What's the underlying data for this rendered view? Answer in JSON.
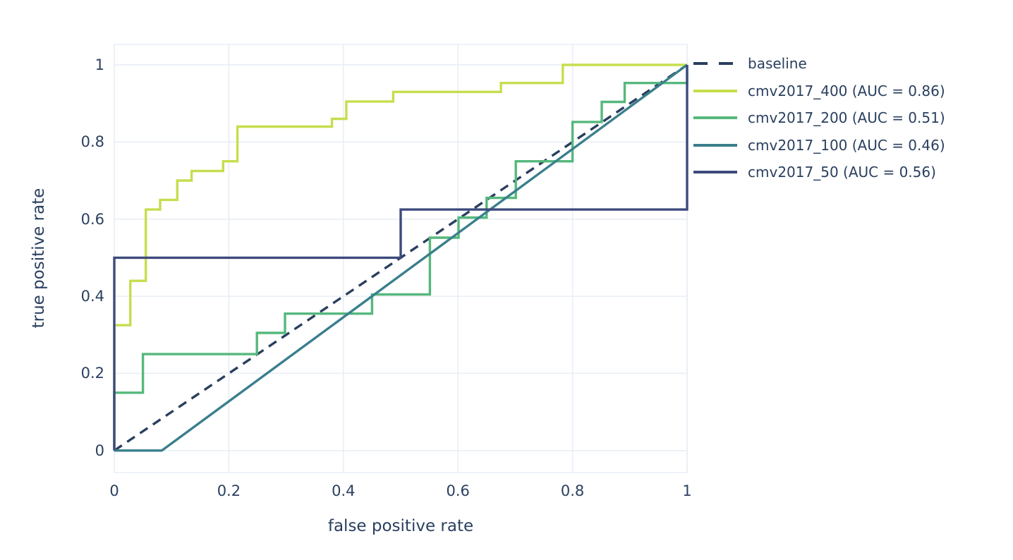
{
  "colors": {
    "text": "#2a3f5f",
    "grid": "#e9eef6",
    "background": "#ffffff"
  },
  "chart_data": {
    "type": "line",
    "subtype": "roc-curves",
    "title": "",
    "xlabel": "false positive rate",
    "ylabel": "true positive rate",
    "xlim": [
      0,
      1
    ],
    "ylim": [
      -0.057,
      1.053
    ],
    "grid": true,
    "legend_position": "right",
    "x_ticks": [
      0,
      0.2,
      0.4,
      0.6,
      0.8,
      1
    ],
    "x_tick_labels": [
      "0",
      "0.2",
      "0.4",
      "0.6",
      "0.8",
      "1"
    ],
    "y_ticks": [
      0,
      0.2,
      0.4,
      0.6,
      0.8,
      1
    ],
    "y_tick_labels": [
      "0",
      "0.2",
      "0.4",
      "0.6",
      "0.8",
      "1"
    ],
    "series": [
      {
        "name": "baseline",
        "color": "#2a3f5f",
        "dash": "13 9",
        "legend_dash": "20 16",
        "width": 3.4,
        "points": [
          [
            0,
            0
          ],
          [
            1,
            1
          ]
        ]
      },
      {
        "name": "cmv2017_400 (AUC = 0.86)",
        "auc": 0.86,
        "color": "#c5de4d",
        "width": 3.4,
        "points": [
          [
            0,
            0
          ],
          [
            0,
            0.325
          ],
          [
            0.028,
            0.325
          ],
          [
            0.028,
            0.44
          ],
          [
            0.055,
            0.44
          ],
          [
            0.055,
            0.625
          ],
          [
            0.08,
            0.625
          ],
          [
            0.08,
            0.65
          ],
          [
            0.11,
            0.65
          ],
          [
            0.11,
            0.7
          ],
          [
            0.135,
            0.7
          ],
          [
            0.135,
            0.725
          ],
          [
            0.19,
            0.725
          ],
          [
            0.19,
            0.75
          ],
          [
            0.215,
            0.75
          ],
          [
            0.215,
            0.84
          ],
          [
            0.38,
            0.84
          ],
          [
            0.38,
            0.86
          ],
          [
            0.405,
            0.86
          ],
          [
            0.405,
            0.905
          ],
          [
            0.487,
            0.905
          ],
          [
            0.487,
            0.93
          ],
          [
            0.675,
            0.93
          ],
          [
            0.675,
            0.953
          ],
          [
            0.783,
            0.953
          ],
          [
            0.783,
            1
          ],
          [
            1,
            1
          ]
        ]
      },
      {
        "name": "cmv2017_200 (AUC = 0.51)",
        "auc": 0.51,
        "color": "#55b87c",
        "width": 3.4,
        "points": [
          [
            0,
            0
          ],
          [
            0,
            0.15
          ],
          [
            0.05,
            0.15
          ],
          [
            0.05,
            0.25
          ],
          [
            0.249,
            0.25
          ],
          [
            0.249,
            0.305
          ],
          [
            0.298,
            0.305
          ],
          [
            0.298,
            0.355
          ],
          [
            0.45,
            0.355
          ],
          [
            0.45,
            0.405
          ],
          [
            0.551,
            0.405
          ],
          [
            0.551,
            0.552
          ],
          [
            0.601,
            0.552
          ],
          [
            0.601,
            0.604
          ],
          [
            0.65,
            0.604
          ],
          [
            0.65,
            0.655
          ],
          [
            0.701,
            0.655
          ],
          [
            0.701,
            0.75
          ],
          [
            0.8,
            0.75
          ],
          [
            0.8,
            0.852
          ],
          [
            0.851,
            0.852
          ],
          [
            0.851,
            0.904
          ],
          [
            0.891,
            0.904
          ],
          [
            0.891,
            0.953
          ],
          [
            1,
            0.953
          ],
          [
            1,
            1
          ]
        ]
      },
      {
        "name": "cmv2017_100 (AUC = 0.46)",
        "auc": 0.46,
        "color": "#3a7f8c",
        "width": 3.4,
        "points": [
          [
            0,
            0
          ],
          [
            0.083,
            0
          ],
          [
            1,
            1
          ]
        ]
      },
      {
        "name": "cmv2017_50 (AUC = 0.56)",
        "auc": 0.56,
        "color": "#3d4a7d",
        "width": 3.4,
        "points": [
          [
            0,
            0
          ],
          [
            0,
            0.5
          ],
          [
            0.5,
            0.5
          ],
          [
            0.5,
            0.625
          ],
          [
            1,
            0.625
          ],
          [
            1,
            1
          ]
        ]
      }
    ]
  }
}
